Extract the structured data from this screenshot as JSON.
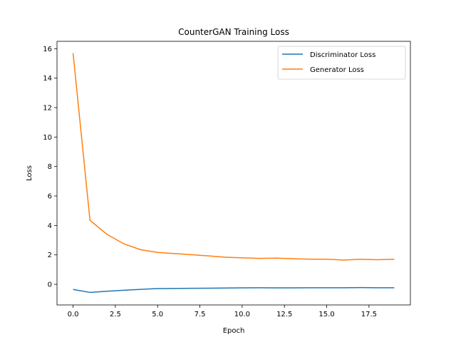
{
  "chart_data": {
    "type": "line",
    "title": "CounterGAN Training Loss",
    "xlabel": "Epoch",
    "ylabel": "Loss",
    "xlim": [
      -0.95,
      19.95
    ],
    "ylim": [
      -1.4,
      16.5
    ],
    "xticks": [
      0,
      2.5,
      5,
      7.5,
      10,
      12.5,
      15,
      17.5
    ],
    "xtick_labels": [
      "0.0",
      "2.5",
      "5.0",
      "7.5",
      "10.0",
      "12.5",
      "15.0",
      "17.5"
    ],
    "yticks": [
      0,
      2,
      4,
      6,
      8,
      10,
      12,
      14,
      16
    ],
    "ytick_labels": [
      "0",
      "2",
      "4",
      "6",
      "8",
      "10",
      "12",
      "14",
      "16"
    ],
    "grid": false,
    "legend_position": "upper-right",
    "x": [
      0,
      1,
      2,
      3,
      4,
      5,
      6,
      7,
      8,
      9,
      10,
      11,
      12,
      13,
      14,
      15,
      16,
      17,
      18,
      19
    ],
    "series": [
      {
        "name": "Discriminator Loss",
        "color": "#1f77b4",
        "values": [
          -0.35,
          -0.55,
          -0.47,
          -0.4,
          -0.34,
          -0.29,
          -0.28,
          -0.27,
          -0.26,
          -0.25,
          -0.24,
          -0.23,
          -0.24,
          -0.24,
          -0.23,
          -0.23,
          -0.23,
          -0.22,
          -0.23,
          -0.23
        ]
      },
      {
        "name": "Generator Loss",
        "color": "#ff7f0e",
        "values": [
          15.7,
          4.35,
          3.4,
          2.75,
          2.35,
          2.17,
          2.09,
          2.01,
          1.93,
          1.84,
          1.8,
          1.76,
          1.78,
          1.74,
          1.71,
          1.71,
          1.65,
          1.7,
          1.67,
          1.7
        ]
      }
    ]
  }
}
